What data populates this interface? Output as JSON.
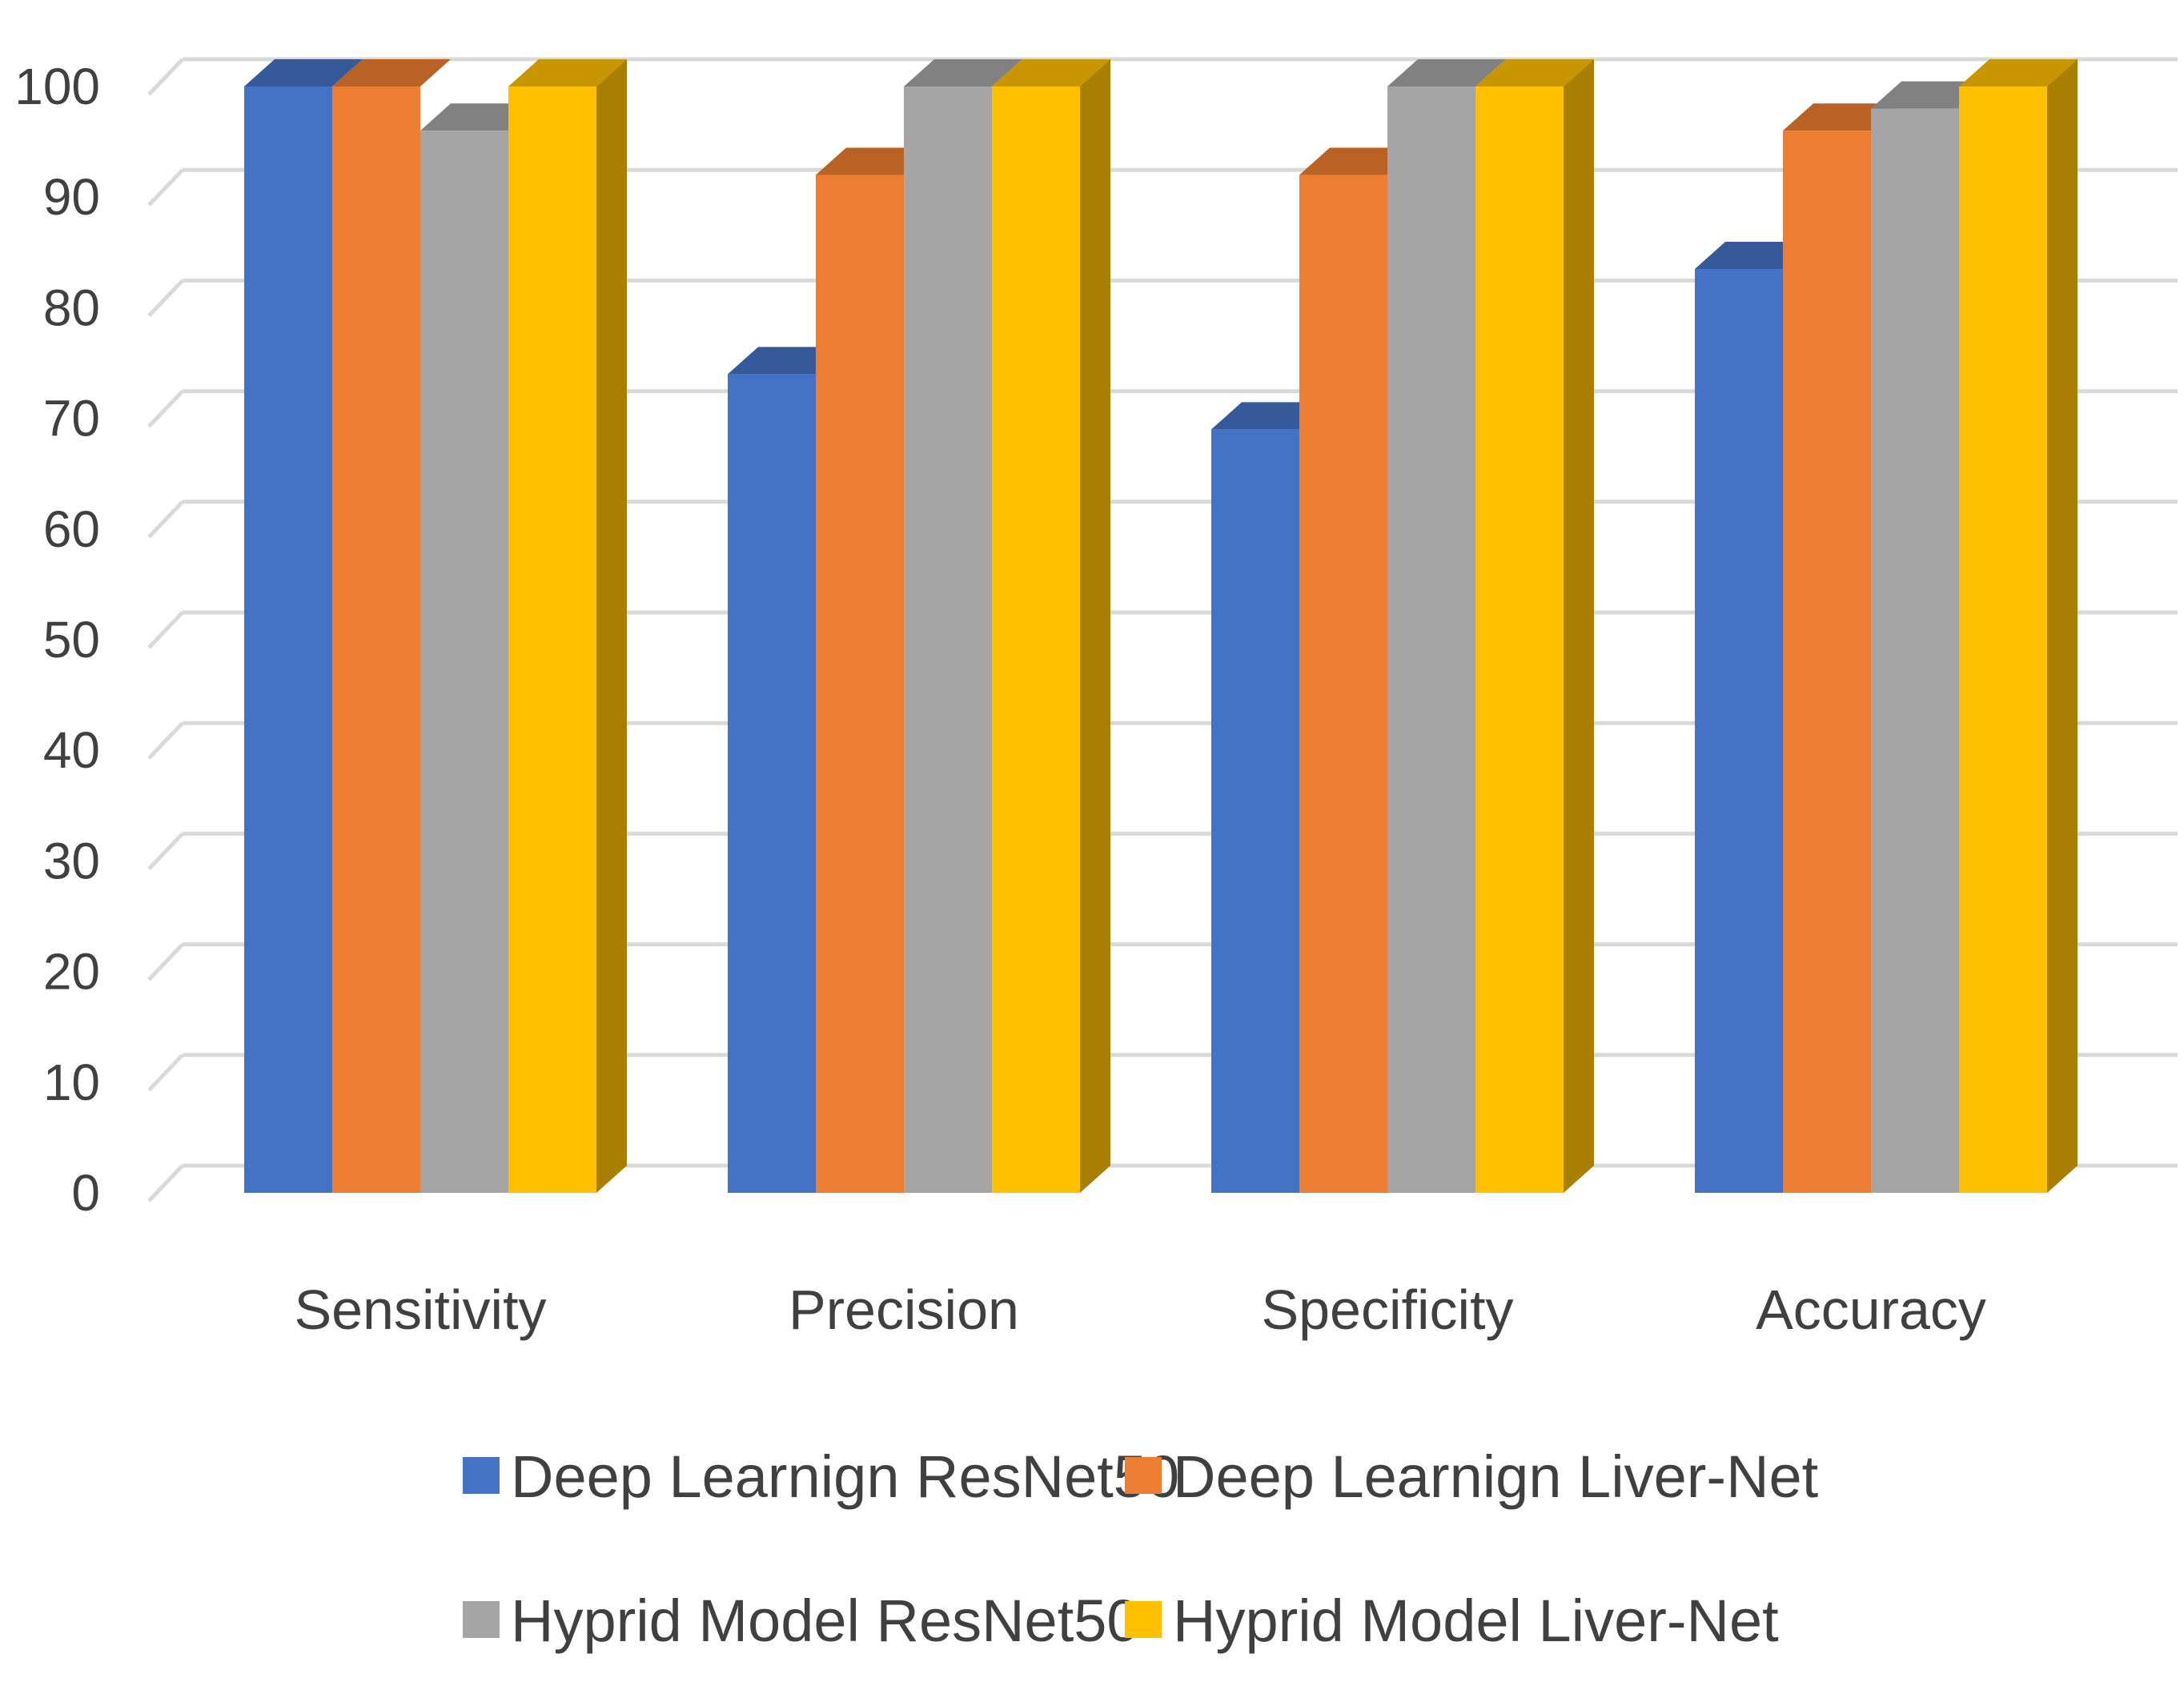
{
  "chart_data": {
    "type": "bar",
    "style": "3d-clustered-column",
    "title": "",
    "xlabel": "",
    "ylabel": "",
    "ylim": [
      0,
      100
    ],
    "yticks": [
      0,
      10,
      20,
      30,
      40,
      50,
      60,
      70,
      80,
      90,
      100
    ],
    "grid": true,
    "legend_position": "bottom",
    "categories": [
      "Sensitivity",
      "Precision",
      "Specificity",
      "Accuracy"
    ],
    "series": [
      {
        "name": "Deep Learnign ResNet50",
        "color": "#4472C4",
        "values": [
          100,
          74,
          69,
          83.5
        ]
      },
      {
        "name": "Deep Learnign Liver-Net",
        "color": "#ED7D31",
        "values": [
          100,
          92,
          92,
          96
        ]
      },
      {
        "name": "Hyprid Model ResNet50",
        "color": "#A5A5A5",
        "values": [
          96,
          100,
          100,
          98
        ]
      },
      {
        "name": "Hyprid Model Liver-Net",
        "color": "#FFC000",
        "values": [
          100,
          100,
          100,
          100
        ]
      }
    ]
  }
}
